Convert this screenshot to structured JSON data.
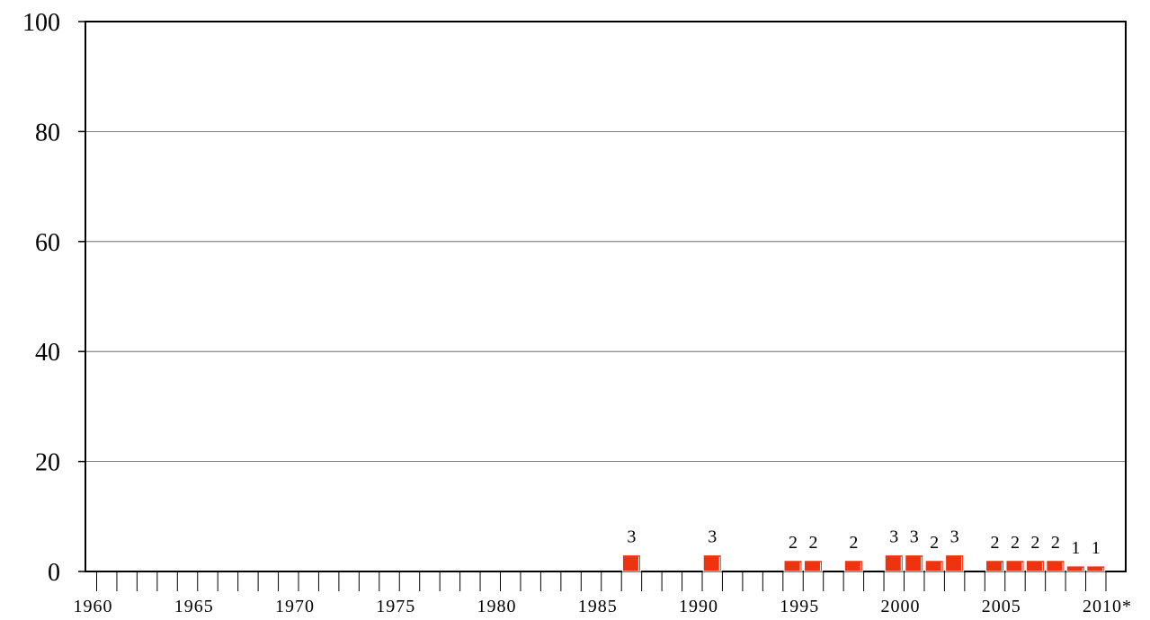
{
  "chart_data": {
    "type": "bar",
    "title": "",
    "xlabel": "",
    "ylabel": "",
    "ylim": [
      0,
      100
    ],
    "yticks": [
      0,
      20,
      40,
      60,
      80,
      100
    ],
    "xlim": [
      1960,
      2010
    ],
    "xtick_labels": [
      {
        "year": 1960,
        "label": "1960"
      },
      {
        "year": 1965,
        "label": "1965"
      },
      {
        "year": 1970,
        "label": "1970"
      },
      {
        "year": 1975,
        "label": "1975"
      },
      {
        "year": 1980,
        "label": "1980"
      },
      {
        "year": 1985,
        "label": "1985"
      },
      {
        "year": 1990,
        "label": "1990"
      },
      {
        "year": 1995,
        "label": "1995"
      },
      {
        "year": 2000,
        "label": "2000"
      },
      {
        "year": 2005,
        "label": "2005"
      },
      {
        "year": 2010,
        "label": "2010*"
      }
    ],
    "grid": true,
    "bar_color": "#ee3311",
    "points": [
      {
        "year": 1986,
        "value": 3
      },
      {
        "year": 1990,
        "value": 3
      },
      {
        "year": 1994,
        "value": 2
      },
      {
        "year": 1995,
        "value": 2
      },
      {
        "year": 1997,
        "value": 2
      },
      {
        "year": 1999,
        "value": 3
      },
      {
        "year": 2000,
        "value": 3
      },
      {
        "year": 2001,
        "value": 2
      },
      {
        "year": 2002,
        "value": 3
      },
      {
        "year": 2004,
        "value": 2
      },
      {
        "year": 2005,
        "value": 2
      },
      {
        "year": 2006,
        "value": 2
      },
      {
        "year": 2007,
        "value": 2
      },
      {
        "year": 2008,
        "value": 1
      },
      {
        "year": 2009,
        "value": 1
      }
    ]
  }
}
